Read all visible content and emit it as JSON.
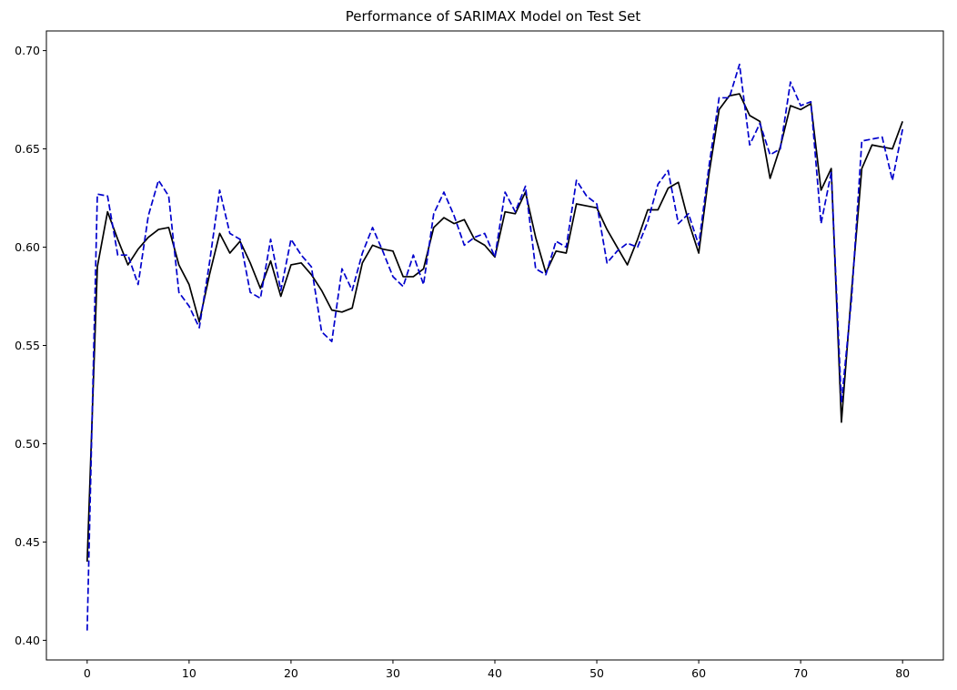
{
  "chart_data": {
    "type": "line",
    "title": "Performance of SARIMAX Model on Test Set",
    "xlabel": "",
    "ylabel": "",
    "xlim": [
      -4,
      84
    ],
    "ylim": [
      0.39,
      0.71
    ],
    "xticks": [
      0,
      10,
      20,
      30,
      40,
      50,
      60,
      70,
      80
    ],
    "xtick_labels": [
      "0",
      "10",
      "20",
      "30",
      "40",
      "50",
      "60",
      "70",
      "80"
    ],
    "yticks": [
      0.4,
      0.45,
      0.5,
      0.55,
      0.6,
      0.65,
      0.7
    ],
    "ytick_labels": [
      "0.40",
      "0.45",
      "0.50",
      "0.55",
      "0.60",
      "0.65",
      "0.70"
    ],
    "grid": false,
    "legend": "none",
    "series": [
      {
        "color": "#000000",
        "style": "solid",
        "x": [
          0,
          1,
          2,
          3,
          4,
          5,
          6,
          7,
          8,
          9,
          10,
          11,
          12,
          13,
          14,
          15,
          16,
          17,
          18,
          19,
          20,
          21,
          22,
          23,
          24,
          25,
          26,
          27,
          28,
          29,
          30,
          31,
          32,
          33,
          34,
          35,
          36,
          37,
          38,
          39,
          40,
          41,
          42,
          43,
          44,
          45,
          46,
          47,
          48,
          49,
          50,
          51,
          52,
          53,
          54,
          55,
          56,
          57,
          58,
          59,
          60,
          61,
          62,
          63,
          64,
          65,
          66,
          67,
          68,
          69,
          70,
          71,
          72,
          73,
          74,
          75,
          76,
          77,
          78,
          79,
          80
        ],
        "values": [
          0.44,
          0.59,
          0.618,
          0.604,
          0.591,
          0.599,
          0.605,
          0.609,
          0.61,
          0.591,
          0.581,
          0.562,
          0.586,
          0.607,
          0.597,
          0.603,
          0.592,
          0.579,
          0.593,
          0.575,
          0.591,
          0.592,
          0.586,
          0.578,
          0.568,
          0.567,
          0.569,
          0.592,
          0.601,
          0.599,
          0.598,
          0.585,
          0.585,
          0.589,
          0.61,
          0.615,
          0.612,
          0.614,
          0.604,
          0.601,
          0.595,
          0.618,
          0.617,
          0.628,
          0.605,
          0.587,
          0.598,
          0.597,
          0.622,
          0.621,
          0.62,
          0.609,
          0.6,
          0.591,
          0.604,
          0.619,
          0.619,
          0.63,
          0.633,
          0.613,
          0.597,
          0.637,
          0.67,
          0.677,
          0.678,
          0.667,
          0.664,
          0.635,
          0.651,
          0.672,
          0.67,
          0.673,
          0.629,
          0.64,
          0.511,
          0.578,
          0.64,
          0.652,
          0.651,
          0.65,
          0.664
        ]
      },
      {
        "color": "#0000cc",
        "style": "dashed",
        "x": [
          0,
          1,
          2,
          3,
          4,
          5,
          6,
          7,
          8,
          9,
          10,
          11,
          12,
          13,
          14,
          15,
          16,
          17,
          18,
          19,
          20,
          21,
          22,
          23,
          24,
          25,
          26,
          27,
          28,
          29,
          30,
          31,
          32,
          33,
          34,
          35,
          36,
          37,
          38,
          39,
          40,
          41,
          42,
          43,
          44,
          45,
          46,
          47,
          48,
          49,
          50,
          51,
          52,
          53,
          54,
          55,
          56,
          57,
          58,
          59,
          60,
          61,
          62,
          63,
          64,
          65,
          66,
          67,
          68,
          69,
          70,
          71,
          72,
          73,
          74,
          75,
          76,
          77,
          78,
          79,
          80
        ],
        "values": [
          0.405,
          0.627,
          0.626,
          0.596,
          0.596,
          0.581,
          0.616,
          0.634,
          0.626,
          0.577,
          0.57,
          0.559,
          0.592,
          0.629,
          0.607,
          0.604,
          0.577,
          0.574,
          0.604,
          0.578,
          0.604,
          0.596,
          0.59,
          0.557,
          0.552,
          0.589,
          0.578,
          0.597,
          0.61,
          0.598,
          0.585,
          0.58,
          0.596,
          0.581,
          0.617,
          0.628,
          0.616,
          0.601,
          0.605,
          0.607,
          0.595,
          0.628,
          0.618,
          0.631,
          0.589,
          0.586,
          0.603,
          0.6,
          0.634,
          0.626,
          0.622,
          0.592,
          0.598,
          0.602,
          0.6,
          0.613,
          0.632,
          0.639,
          0.612,
          0.617,
          0.601,
          0.641,
          0.676,
          0.676,
          0.693,
          0.652,
          0.663,
          0.647,
          0.65,
          0.684,
          0.672,
          0.674,
          0.612,
          0.638,
          0.521,
          0.574,
          0.654,
          0.655,
          0.656,
          0.634,
          0.66
        ]
      }
    ]
  }
}
